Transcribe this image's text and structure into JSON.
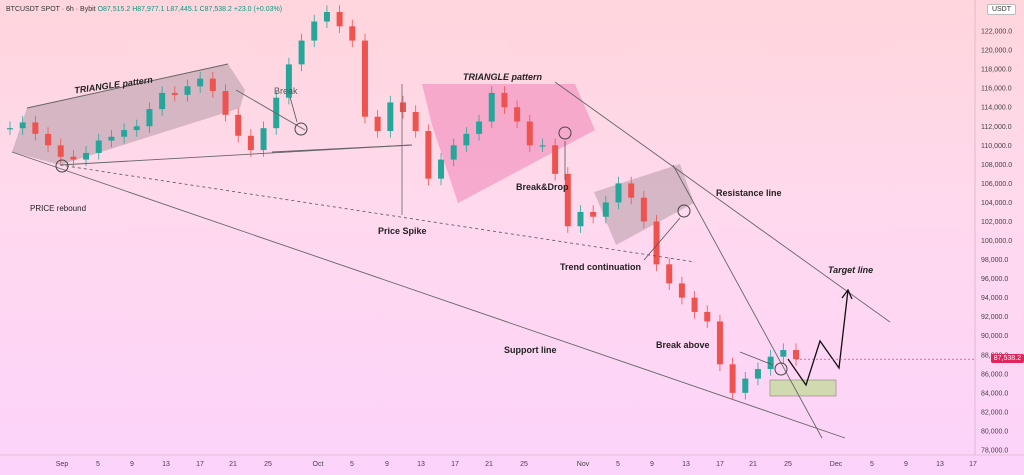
{
  "header": {
    "symbol": "BTCUSDT SPOT · 6h · Bybit",
    "open": "O87,515.2",
    "high": "H87,977.1",
    "low": "L87,445.1",
    "close": "C87,538.2",
    "change": "+23.0 (+0.03%)",
    "currency": "USDT"
  },
  "labels": {
    "triangle1": "TRIANGLE pattern",
    "break": "Break",
    "price_rebound": "PRICE rebound",
    "triangle2": "TRIANGLE pattern",
    "break_drop": "Break&Drop",
    "resistance": "Resistance line",
    "price_spike": "Price Spike",
    "trend_continuation": "Trend continuation",
    "target": "Target line",
    "support": "Support line",
    "break_above": "Break above"
  },
  "current_price": "87,538.2",
  "colors": {
    "up": "#26a69a",
    "down": "#ef5350",
    "triangle1": "#b59aa5",
    "triangle2": "#f08ab9",
    "tag": "#e0245e"
  },
  "chart_data": {
    "type": "candlestick",
    "ylim": [
      78000,
      124000
    ],
    "yticks": [
      78000,
      80000,
      82000,
      84000,
      86000,
      88000,
      90000,
      92000,
      94000,
      96000,
      98000,
      100000,
      102000,
      104000,
      106000,
      108000,
      110000,
      112000,
      114000,
      116000,
      118000,
      120000,
      122000
    ],
    "ytick_labels": [
      "78,000.0",
      "80,000.0",
      "82,000.0",
      "84,000.0",
      "86,000.0",
      "88,000.0",
      "90,000.0",
      "92,000.0",
      "94,000.0",
      "96,000.0",
      "98,000.0",
      "100,000.0",
      "102,000.0",
      "104,000.0",
      "106,000.0",
      "108,000.0",
      "110,000.0",
      "112,000.0",
      "114,000.0",
      "116,000.0",
      "118,000.0",
      "120,000.0",
      "122,000.0"
    ],
    "xtick_labels": [
      "Sep",
      "5",
      "9",
      "13",
      "17",
      "21",
      "25",
      "Oct",
      "5",
      "9",
      "13",
      "17",
      "21",
      "25",
      "Nov",
      "5",
      "9",
      "13",
      "17",
      "21",
      "25",
      "Dec",
      "5",
      "9",
      "13",
      "17"
    ],
    "series": [
      {
        "date": "Aug 26",
        "price": 111800
      },
      {
        "date": "Aug 27",
        "price": 112400
      },
      {
        "date": "Aug 28",
        "price": 111200
      },
      {
        "date": "Aug 29",
        "price": 110000
      },
      {
        "date": "Aug 30",
        "price": 108800
      },
      {
        "date": "Aug 31",
        "price": 108500
      },
      {
        "date": "Sep 1",
        "price": 109200
      },
      {
        "date": "Sep 3",
        "price": 110500
      },
      {
        "date": "Sep 5",
        "price": 110900
      },
      {
        "date": "Sep 7",
        "price": 111600
      },
      {
        "date": "Sep 9",
        "price": 112000
      },
      {
        "date": "Sep 11",
        "price": 113800
      },
      {
        "date": "Sep 13",
        "price": 115500
      },
      {
        "date": "Sep 15",
        "price": 115300
      },
      {
        "date": "Sep 17",
        "price": 116200
      },
      {
        "date": "Sep 19",
        "price": 117000
      },
      {
        "date": "Sep 21",
        "price": 115700
      },
      {
        "date": "Sep 23",
        "price": 113200
      },
      {
        "date": "Sep 25",
        "price": 111000
      },
      {
        "date": "Sep 27",
        "price": 109500
      },
      {
        "date": "Sep 29",
        "price": 111800
      },
      {
        "date": "Oct 1",
        "price": 115000
      },
      {
        "date": "Oct 2",
        "price": 118500
      },
      {
        "date": "Oct 3",
        "price": 121000
      },
      {
        "date": "Oct 5",
        "price": 123000
      },
      {
        "date": "Oct 6",
        "price": 124000
      },
      {
        "date": "Oct 8",
        "price": 122500
      },
      {
        "date": "Oct 9",
        "price": 121000
      },
      {
        "date": "Oct 10",
        "price": 113000
      },
      {
        "date": "Oct 11",
        "price": 111500
      },
      {
        "date": "Oct 12",
        "price": 114500
      },
      {
        "date": "Oct 14",
        "price": 113500
      },
      {
        "date": "Oct 15",
        "price": 111500
      },
      {
        "date": "Oct 17",
        "price": 106500
      },
      {
        "date": "Oct 19",
        "price": 108500
      },
      {
        "date": "Oct 21",
        "price": 110000
      },
      {
        "date": "Oct 23",
        "price": 111200
      },
      {
        "date": "Oct 25",
        "price": 112500
      },
      {
        "date": "Oct 27",
        "price": 115500
      },
      {
        "date": "Oct 28",
        "price": 114000
      },
      {
        "date": "Oct 29",
        "price": 112500
      },
      {
        "date": "Oct 31",
        "price": 110000
      },
      {
        "date": "Nov 2",
        "price": 110000
      },
      {
        "date": "Nov 3",
        "price": 107000
      },
      {
        "date": "Nov 4",
        "price": 101500
      },
      {
        "date": "Nov 5",
        "price": 103000
      },
      {
        "date": "Nov 7",
        "price": 102500
      },
      {
        "date": "Nov 9",
        "price": 104000
      },
      {
        "date": "Nov 11",
        "price": 106000
      },
      {
        "date": "Nov 12",
        "price": 104500
      },
      {
        "date": "Nov 13",
        "price": 102000
      },
      {
        "date": "Nov 14",
        "price": 97500
      },
      {
        "date": "Nov 16",
        "price": 95500
      },
      {
        "date": "Nov 17",
        "price": 94000
      },
      {
        "date": "Nov 18",
        "price": 92500
      },
      {
        "date": "Nov 19",
        "price": 91500
      },
      {
        "date": "Nov 20",
        "price": 87000
      },
      {
        "date": "Nov 21",
        "price": 84000
      },
      {
        "date": "Nov 22",
        "price": 85500
      },
      {
        "date": "Nov 23",
        "price": 86500
      },
      {
        "date": "Nov 24",
        "price": 87800
      },
      {
        "date": "Nov 25",
        "price": 88500
      },
      {
        "date": "Nov 26",
        "price": 87538
      }
    ]
  }
}
